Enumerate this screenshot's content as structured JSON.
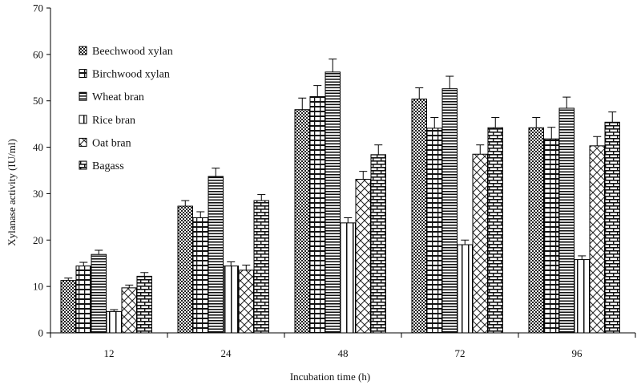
{
  "chart_data": {
    "type": "bar",
    "title": "",
    "xlabel": "Incubation time (h)",
    "ylabel": "Xylanase activity (IU/ml)",
    "ylim": [
      0,
      70
    ],
    "yticks": [
      0,
      10,
      20,
      30,
      40,
      50,
      60,
      70
    ],
    "categories": [
      "12",
      "24",
      "48",
      "72",
      "96"
    ],
    "legend_position": "top-left",
    "grid": false,
    "series": [
      {
        "name": "Beechwood xylan",
        "pattern": "check",
        "values": [
          11.3,
          27.3,
          48.1,
          50.4,
          44.2
        ],
        "errors": [
          0.5,
          1.2,
          2.5,
          2.4,
          2.2
        ]
      },
      {
        "name": "Birchwood xylan",
        "pattern": "grid",
        "values": [
          14.4,
          24.8,
          50.9,
          44.1,
          41.8
        ],
        "errors": [
          0.8,
          1.3,
          2.4,
          2.3,
          2.5
        ]
      },
      {
        "name": "Wheat bran",
        "pattern": "hlines",
        "values": [
          16.9,
          33.7,
          56.2,
          52.6,
          48.4
        ],
        "errors": [
          0.9,
          1.8,
          2.8,
          2.7,
          2.4
        ]
      },
      {
        "name": "Rice bran",
        "pattern": "vlines",
        "values": [
          4.6,
          14.4,
          23.7,
          19.0,
          15.8
        ],
        "errors": [
          0.4,
          0.9,
          1.1,
          1.0,
          0.8
        ]
      },
      {
        "name": "Oat bran",
        "pattern": "diag",
        "values": [
          9.7,
          13.5,
          33.1,
          38.5,
          40.3
        ],
        "errors": [
          0.6,
          1.1,
          1.7,
          2.0,
          2.0
        ]
      },
      {
        "name": "Bagass",
        "pattern": "brick",
        "values": [
          12.2,
          28.5,
          38.4,
          44.2,
          45.4
        ],
        "errors": [
          0.8,
          1.3,
          2.1,
          2.2,
          2.2
        ]
      }
    ]
  }
}
